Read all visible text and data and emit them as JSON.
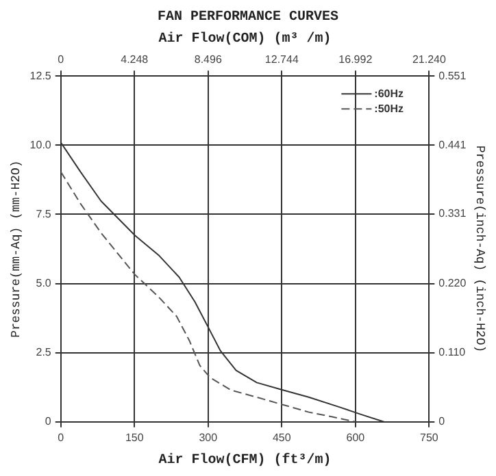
{
  "chart_data": {
    "type": "line",
    "title": "FAN PERFORMANCE CURVES",
    "xlabel": "Air Flow(CFM) (ft³/m)",
    "x2label": "Air Flow(COM) (m³ /m)",
    "ylabel": "Pressure(mm-Aq) (mm-H2O)",
    "y2label": "Pressure(inch-Aq) (inch-H2O)",
    "series": [
      {
        "name": ":60Hz",
        "color": "#333333",
        "line_style": "solid",
        "x": [
          0,
          40,
          82,
          151,
          199,
          241,
          273,
          299,
          325,
          357,
          399,
          452,
          505,
          568,
          611,
          658
        ],
        "values": [
          10.1,
          9.04,
          7.98,
          6.74,
          6.03,
          5.23,
          4.34,
          3.46,
          2.57,
          1.86,
          1.42,
          1.15,
          0.89,
          0.53,
          0.27,
          0
        ]
      },
      {
        "name": ":50Hz",
        "color": "#555555",
        "line_style": "dashed",
        "x": [
          0,
          40,
          82,
          151,
          199,
          236,
          262,
          283,
          304,
          346,
          399,
          452,
          505,
          553,
          600
        ],
        "values": [
          9.04,
          7.89,
          6.83,
          5.32,
          4.52,
          3.81,
          2.93,
          2.04,
          1.6,
          1.15,
          0.89,
          0.62,
          0.35,
          0.18,
          0
        ]
      }
    ],
    "xlim": [
      0,
      750
    ],
    "xticks": [
      0,
      150,
      300,
      450,
      600,
      750
    ],
    "ylim": [
      0,
      12.5
    ],
    "yticks": [
      0,
      2.5,
      {
        "value": 5,
        "label": "5.0"
      },
      7.5,
      {
        "value": 10,
        "label": "10.0"
      },
      12.5
    ],
    "x2lim": [
      0,
      21.24
    ],
    "x2ticks": [
      0,
      4.248,
      8.496,
      12.744,
      16.992,
      {
        "value": 21.24,
        "label": "21.240"
      }
    ],
    "y2lim": [
      0,
      0.551
    ],
    "y2ticks": [
      0,
      {
        "value": 0.11,
        "label": "0.110"
      },
      {
        "value": 0.22,
        "label": "0.220"
      },
      0.331,
      0.441,
      0.551
    ],
    "grid": true,
    "legend": "top right",
    "marker": "none"
  }
}
